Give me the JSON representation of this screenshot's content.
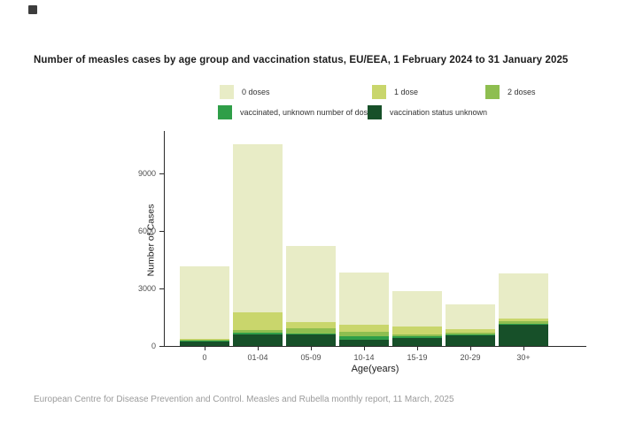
{
  "page": {
    "source_note": "European Centre for Disease Prevention and Control. Measles and Rubella monthly report, 11 March, 2025"
  },
  "chart_data": {
    "type": "bar",
    "stacked": true,
    "title": "Number of measles cases by age group and vaccination status, EU/EEA, 1 February 2024 to 31 January 2025",
    "categories": [
      "0",
      "01-04",
      "05-09",
      "10-14",
      "15-19",
      "20-29",
      "30+"
    ],
    "xlabel": "Age(years)",
    "ylabel": "Number of Cases",
    "yticks": [
      0,
      3000,
      6000,
      9000
    ],
    "ylim": [
      0,
      11000
    ],
    "grid": false,
    "legend_position": "top",
    "series": [
      {
        "name": "0 doses",
        "color": "#e8ecc6",
        "values": [
          3770,
          8780,
          3960,
          2725,
          1850,
          1295,
          2345
        ]
      },
      {
        "name": "1 dose",
        "color": "#c9d66c",
        "values": [
          50,
          940,
          320,
          370,
          415,
          185,
          140
        ]
      },
      {
        "name": "2 doses",
        "color": "#8ebe50",
        "values": [
          30,
          120,
          260,
          230,
          90,
          90,
          140
        ]
      },
      {
        "name": "vaccinated, unknown number of doses",
        "color": "#2f9e48",
        "values": [
          50,
          80,
          60,
          185,
          90,
          45,
          45
        ]
      },
      {
        "name": "vaccination status unknown",
        "color": "#175029",
        "values": [
          250,
          620,
          600,
          320,
          415,
          555,
          1110
        ]
      }
    ],
    "stack_note": "stacked bottom-to-top in reverse series order: vaccination status unknown at bottom, 0 doses on top",
    "totals": [
      4150,
      10540,
      5200,
      3830,
      2860,
      2170,
      3780
    ]
  }
}
